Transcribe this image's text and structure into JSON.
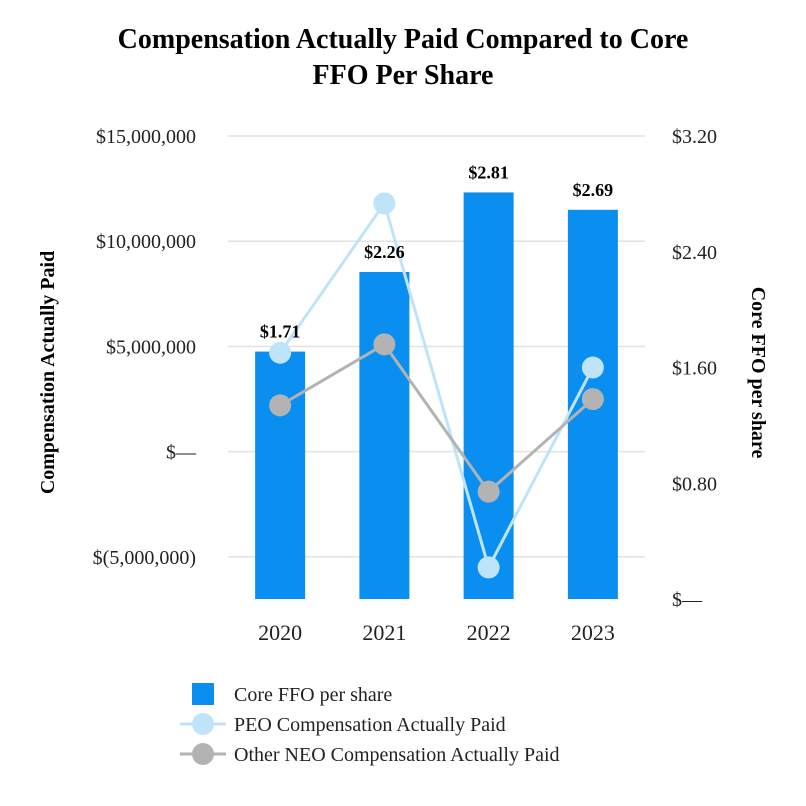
{
  "chart_data": {
    "type": "bar",
    "title_lines": [
      "Compensation Actually Paid Compared to Core",
      "FFO Per Share"
    ],
    "categories": [
      "2020",
      "2021",
      "2022",
      "2023"
    ],
    "left_axis": {
      "label": "Compensation Actually Paid",
      "ylim": [
        -7000000,
        15000000
      ],
      "ticks": [
        15000000,
        10000000,
        5000000,
        0,
        -5000000
      ],
      "tick_labels": [
        "$15,000,000",
        "$10,000,000",
        "$5,000,000",
        "$—",
        "$(5,000,000)"
      ]
    },
    "right_axis": {
      "label": "Core FFO per share",
      "ylim": [
        0,
        3.2
      ],
      "ticks": [
        3.2,
        2.4,
        1.6,
        0.8,
        0
      ],
      "tick_labels": [
        "$3.20",
        "$2.40",
        "$1.60",
        "$0.80",
        "$—"
      ]
    },
    "series": [
      {
        "name": "Core FFO per share",
        "type": "bar",
        "axis": "right",
        "color": "#0a8ff0",
        "values": [
          1.71,
          2.26,
          2.81,
          2.69
        ],
        "data_labels": [
          "$1.71",
          "$2.26",
          "$2.81",
          "$2.69"
        ]
      },
      {
        "name": "PEO Compensation Actually Paid",
        "type": "line",
        "axis": "left",
        "color": "#bfe4fa",
        "values": [
          4700000,
          11800000,
          -5500000,
          4000000
        ]
      },
      {
        "name": "Other NEO Compensation Actually Paid",
        "type": "line",
        "axis": "left",
        "color": "#b3b3b3",
        "values": [
          2200000,
          5100000,
          -1900000,
          2500000
        ]
      }
    ],
    "grid": true,
    "legend_position": "bottom"
  }
}
